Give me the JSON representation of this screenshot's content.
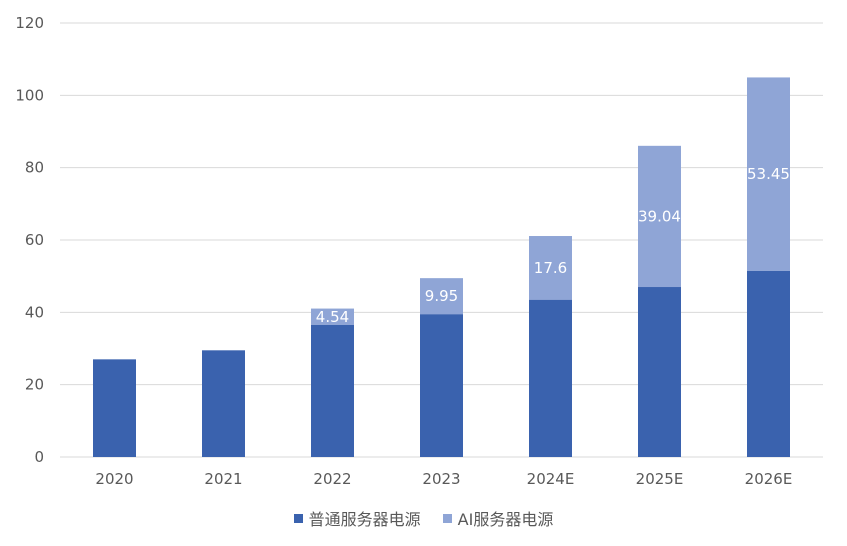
{
  "chart_data": {
    "type": "bar",
    "stacked": true,
    "categories": [
      "2020",
      "2021",
      "2022",
      "2023",
      "2024E",
      "2025E",
      "2026E"
    ],
    "series": [
      {
        "name": "普通服务器电源",
        "color": "#3A62AE",
        "values": [
          27,
          29.5,
          36.5,
          39.5,
          43.5,
          47,
          51.5
        ]
      },
      {
        "name": "AI服务器电源",
        "color": "#8FA5D6",
        "values": [
          0,
          0,
          4.54,
          9.95,
          17.6,
          39.04,
          53.45
        ],
        "data_labels": [
          "",
          "",
          "4.54",
          "9.95",
          "17.6",
          "39.04",
          "53.45"
        ]
      }
    ],
    "ylim": [
      0,
      120
    ],
    "yticks": [
      "0",
      "20",
      "40",
      "60",
      "80",
      "100",
      "120"
    ],
    "grid": true,
    "legend_position": "bottom"
  }
}
